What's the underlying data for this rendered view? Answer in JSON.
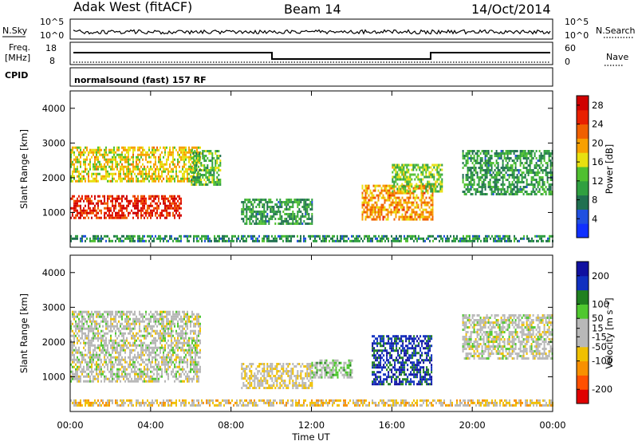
{
  "header": {
    "station": "Adak West (fitACF)",
    "beam": "Beam 14",
    "date": "14/Oct/2014"
  },
  "strip_labels": {
    "left_top": "N.Sky",
    "right_top": "N.Search",
    "left_mid_1": "Freq.",
    "left_mid_2": "[MHz]",
    "right_mid": "Nave",
    "left_bottom": "CPID",
    "mode": "normalsound (fast) 157 RF"
  },
  "strip_ticks": {
    "noise_left": [
      "10^5",
      "10^0"
    ],
    "noise_right": [
      "10^5",
      "10^0"
    ],
    "freq_left": [
      "18",
      "8"
    ],
    "nave_right": [
      "60",
      "0"
    ]
  },
  "colors": {
    "power_scale": [
      "#1030ff",
      "#2050e0",
      "#207050",
      "#30a040",
      "#50c030",
      "#e8e010",
      "#f8a000",
      "#f06000",
      "#e82000",
      "#d00000"
    ],
    "velocity_scale": [
      "#e00000",
      "#ff5000",
      "#f89000",
      "#f0c000",
      "#b8b8b8",
      "#b8b8b8",
      "#50c830",
      "#208020",
      "#1030c0",
      "#1010a0"
    ]
  },
  "chart_data": [
    {
      "type": "heatmap",
      "panel": "power",
      "title": "",
      "xlabel": "Time UT",
      "ylabel": "Slant Range [km]",
      "x_ticks": [
        "00:00",
        "04:00",
        "08:00",
        "12:00",
        "16:00",
        "20:00",
        "00:00"
      ],
      "y_ticks": [
        "1000",
        "2000",
        "3000",
        "4000"
      ],
      "xlim_hours": [
        0,
        24
      ],
      "ylim_km": [
        0,
        4500
      ],
      "colorbar": {
        "label": "Power [dB]",
        "ticks": [
          "4",
          "8",
          "12",
          "16",
          "20",
          "24",
          "28"
        ],
        "range": [
          0,
          30
        ]
      },
      "echo_regions": [
        {
          "t0": 0.0,
          "t1": 5.5,
          "r0": 850,
          "r1": 1500,
          "value": 26
        },
        {
          "t0": 0.0,
          "t1": 6.5,
          "r0": 1900,
          "r1": 2900,
          "value": 17
        },
        {
          "t0": 6.0,
          "t1": 7.5,
          "r0": 1800,
          "r1": 2800,
          "value": 12
        },
        {
          "t0": 8.5,
          "t1": 12.0,
          "r0": 700,
          "r1": 1400,
          "value": 10
        },
        {
          "t0": 14.5,
          "t1": 18.0,
          "r0": 800,
          "r1": 1800,
          "value": 20
        },
        {
          "t0": 16.0,
          "t1": 18.5,
          "r0": 1600,
          "r1": 2400,
          "value": 14
        },
        {
          "t0": 19.5,
          "t1": 24.0,
          "r0": 1500,
          "r1": 2800,
          "value": 10
        },
        {
          "t0": 0.0,
          "t1": 24.0,
          "r0": 150,
          "r1": 350,
          "value": 9
        }
      ]
    },
    {
      "type": "heatmap",
      "panel": "velocity",
      "title": "",
      "xlabel": "Time UT",
      "ylabel": "Slant Range [km]",
      "x_ticks": [
        "00:00",
        "04:00",
        "08:00",
        "12:00",
        "16:00",
        "20:00",
        "00:00"
      ],
      "y_ticks": [
        "1000",
        "2000",
        "3000",
        "4000"
      ],
      "xlim_hours": [
        0,
        24
      ],
      "ylim_km": [
        0,
        4500
      ],
      "colorbar": {
        "label": "Velocity [m s⁻¹]",
        "ticks": [
          "200",
          "100",
          "50",
          "15",
          "-15",
          "-50",
          "-100",
          "-200"
        ],
        "range": [
          -250,
          250
        ]
      },
      "echo_regions": [
        {
          "t0": 0.0,
          "t1": 6.5,
          "r0": 850,
          "r1": 2900,
          "value": 0
        },
        {
          "t0": 8.5,
          "t1": 12.0,
          "r0": 700,
          "r1": 1400,
          "value": -30
        },
        {
          "t0": 12.0,
          "t1": 14.0,
          "r0": 1000,
          "r1": 1500,
          "value": 40
        },
        {
          "t0": 15.0,
          "t1": 18.0,
          "r0": 800,
          "r1": 2200,
          "value": 180
        },
        {
          "t0": 19.5,
          "t1": 24.0,
          "r0": 1500,
          "r1": 2800,
          "value": 0
        },
        {
          "t0": 0.0,
          "t1": 24.0,
          "r0": 150,
          "r1": 350,
          "value": -60
        }
      ]
    }
  ]
}
